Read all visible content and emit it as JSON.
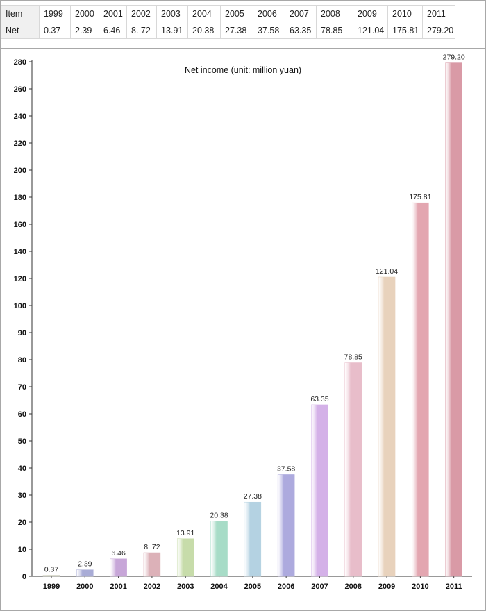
{
  "table": {
    "header_label": "Item",
    "row_label": "Net",
    "years": [
      "1999",
      "2000",
      "2001",
      "2002",
      "2003",
      "2004",
      "2005",
      "2006",
      "2007",
      "2008",
      "2009",
      "2010",
      "2011"
    ],
    "values": [
      "0.37",
      "2.39",
      "6.46",
      "8. 72",
      "13.91",
      "20.38",
      "27.38",
      "37.58",
      "63.35",
      "78.85",
      "121.04",
      "175.81",
      "279.20"
    ]
  },
  "chart_data": {
    "type": "bar",
    "title": "Net income (unit: million yuan)",
    "xlabel": "",
    "ylabel": "",
    "categories": [
      "1999",
      "2000",
      "2001",
      "2002",
      "2003",
      "2004",
      "2005",
      "2006",
      "2007",
      "2008",
      "2009",
      "2010",
      "2011"
    ],
    "values": [
      0.37,
      2.39,
      6.46,
      8.72,
      13.91,
      20.38,
      27.38,
      37.58,
      63.35,
      78.85,
      121.04,
      175.81,
      279.2
    ],
    "value_labels": [
      "0.37",
      "2.39",
      "6.46",
      "8. 72",
      "13.91",
      "20.38",
      "27.38",
      "37.58",
      "63.35",
      "78.85",
      "121.04",
      "175.81",
      "279.20"
    ],
    "y_ticks": [
      "0",
      "10",
      "20",
      "30",
      "40",
      "50",
      "60",
      "70",
      "80",
      "90",
      "100",
      "120",
      "140",
      "160",
      "180",
      "200",
      "220",
      "240",
      "260",
      "280"
    ],
    "tick_values": [
      0,
      10,
      20,
      30,
      40,
      50,
      60,
      70,
      80,
      90,
      100,
      120,
      140,
      160,
      180,
      200,
      220,
      240,
      260,
      280
    ],
    "grid": false,
    "legend": "none",
    "bar_colors": [
      "#c9ccb8",
      "#a9acd6",
      "#c7a6d8",
      "#dcb1b8",
      "#c7dcaa",
      "#a7dcc7",
      "#b4d2e2",
      "#adaade",
      "#d4b1e8",
      "#e8bdca",
      "#e8d2bc",
      "#e3a6b0",
      "#d99aa6"
    ]
  }
}
